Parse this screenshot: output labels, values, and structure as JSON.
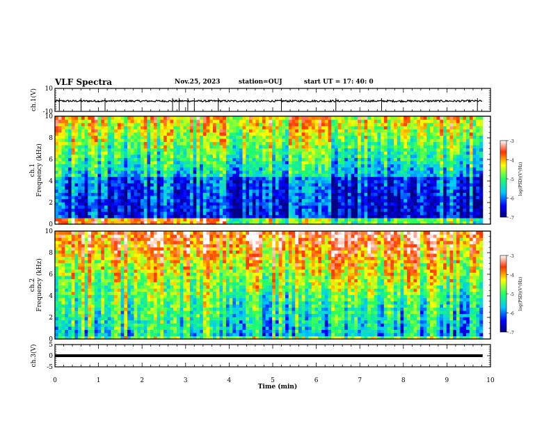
{
  "header": {
    "title": "VLF Spectra",
    "date": "Nov.25, 2023",
    "station": "station=OUJ",
    "start": "start  UT  =   17: 40: 0"
  },
  "chart_data": [
    {
      "type": "line",
      "panel": "ch1-waveform",
      "ylabel": "ch.1(V)",
      "yticks": [
        "10",
        "-10"
      ],
      "ylim": [
        -10,
        10
      ],
      "xlim": [
        0,
        10
      ],
      "baseline": -1,
      "trace_end": 9.82,
      "spikes_min": [
        0.1,
        0.6,
        1.15,
        2.7,
        2.85,
        3.05,
        3.2,
        3.75,
        5.2,
        6.45,
        7.5,
        9.7
      ]
    },
    {
      "type": "heatmap",
      "panel": "ch1-spectrogram",
      "ylabel": "ch.1\nFrequency (kHz)",
      "yticks": [
        "0",
        "2",
        "4",
        "6",
        "8",
        "10"
      ],
      "ylim": [
        0,
        10
      ],
      "xlim": [
        0,
        10
      ],
      "time_end": 9.82,
      "colorbar": {
        "label": "log(PSD)(V²/Hz)",
        "ticks": [
          "-3",
          "-4",
          "-5",
          "-6",
          "-7"
        ],
        "range": [
          -7,
          -3
        ]
      }
    },
    {
      "type": "heatmap",
      "panel": "ch2-spectrogram",
      "ylabel": "ch.2\nFrequency (kHz)",
      "yticks": [
        "0",
        "2",
        "4",
        "6",
        "8",
        "10"
      ],
      "ylim": [
        0,
        10
      ],
      "xlim": [
        0,
        10
      ],
      "time_end": 9.82,
      "colorbar": {
        "label": "log(PSD)(V²/Hz)",
        "ticks": [
          "-3",
          "-4",
          "-5",
          "-6",
          "-7"
        ],
        "range": [
          -7,
          -3
        ]
      }
    },
    {
      "type": "line",
      "panel": "ch3-level",
      "ylabel": "ch.3(V)",
      "yticks": [
        "5",
        "0",
        "-5"
      ],
      "ylim": [
        -5,
        5
      ],
      "xlim": [
        0,
        10
      ],
      "level": 0,
      "trace_end": 9.82
    }
  ],
  "xaxis": {
    "label": "Time (min)",
    "ticks": [
      "0",
      "1",
      "2",
      "3",
      "4",
      "5",
      "6",
      "7",
      "8",
      "9",
      "10"
    ]
  }
}
